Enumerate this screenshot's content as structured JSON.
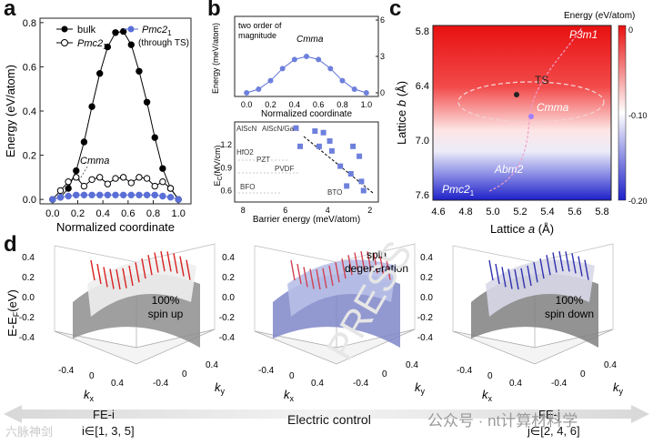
{
  "panel_labels": {
    "a": "a",
    "b": "b",
    "c": "c",
    "d": "d"
  },
  "chart_data": [
    {
      "id": "a",
      "type": "line",
      "ylabel": "Energy (eV/atom)",
      "xlabel": "Normalized coordinate",
      "xlim": [
        -0.1,
        1.1
      ],
      "ylim": [
        -0.02,
        0.82
      ],
      "xticks": [
        "0.0",
        "0.2",
        "0.4",
        "0.6",
        "0.8",
        "1.0"
      ],
      "yticks": [
        "0.0",
        "0.2",
        "0.4",
        "0.6",
        "0.8"
      ],
      "legend": {
        "bulk": "bulk",
        "pmc2": "Pmc2",
        "pmc2_sub": "1",
        "pmc2ts": "Pmc2",
        "pmc2ts_sub": "1",
        "ts_note": "(through TS)"
      },
      "annotation": "Cmma",
      "x": [
        0.0,
        0.0625,
        0.125,
        0.1875,
        0.25,
        0.3125,
        0.375,
        0.4375,
        0.5,
        0.5625,
        0.625,
        0.6875,
        0.75,
        0.8125,
        0.875,
        0.9375,
        1.0
      ],
      "series": [
        {
          "name": "bulk",
          "values": [
            0.0,
            0.01,
            0.05,
            0.13,
            0.26,
            0.42,
            0.57,
            0.69,
            0.755,
            0.76,
            0.7,
            0.58,
            0.44,
            0.28,
            0.14,
            0.05,
            0.0
          ]
        },
        {
          "name": "Pmc2_1",
          "values": [
            0.0,
            0.04,
            0.08,
            0.1,
            0.06,
            0.09,
            0.1,
            0.07,
            0.095,
            0.1,
            0.075,
            0.1,
            0.095,
            0.06,
            0.08,
            0.05,
            0.0
          ]
        },
        {
          "name": "Pmc2_1 (through TS)",
          "values": [
            0.0,
            0.01,
            0.015,
            0.02,
            0.02,
            0.02,
            0.02,
            0.02,
            0.02,
            0.02,
            0.02,
            0.02,
            0.02,
            0.02,
            0.015,
            0.01,
            0.0
          ]
        }
      ]
    },
    {
      "id": "b-top",
      "type": "line",
      "ylabel": "Energy (meV/atom)",
      "xlabel": "Normalized coordinate",
      "xticks": [
        "0.0",
        "0.2",
        "0.4",
        "0.6",
        "0.8",
        "1.0"
      ],
      "yticks": [
        "0",
        "3",
        "6"
      ],
      "annotation": "two order of magnitude",
      "label": "Cmma",
      "x": [
        0.0,
        0.1,
        0.2,
        0.3,
        0.4,
        0.5,
        0.6,
        0.7,
        0.8,
        0.9,
        1.0
      ],
      "values": [
        0.0,
        0.3,
        1.0,
        2.0,
        2.75,
        3.0,
        2.75,
        2.0,
        1.0,
        0.3,
        0.0
      ]
    },
    {
      "id": "b-bottom",
      "type": "scatter",
      "ylabel": "E",
      "ylabel_sub": "C",
      "ylabel_unit": "(MV/cm)",
      "xlabel": "Barrier energy (meV/atom)",
      "xticks": [
        "8",
        "6",
        "4",
        "2"
      ],
      "yticks": [
        "0.6",
        "0.9",
        "1.2"
      ],
      "material_labels": [
        "AlScN",
        "AlScN/GaN",
        "HfO2",
        "PZT",
        "PVDF",
        "BFO",
        "BTO"
      ],
      "points": [
        [
          5.5,
          1.42
        ],
        [
          4.6,
          1.38
        ],
        [
          4.2,
          1.36
        ],
        [
          3.9,
          1.25
        ],
        [
          5.3,
          1.18
        ],
        [
          4.4,
          1.18
        ],
        [
          3.8,
          1.12
        ],
        [
          2.8,
          1.18
        ],
        [
          2.5,
          1.05
        ],
        [
          3.4,
          0.92
        ],
        [
          2.9,
          0.82
        ],
        [
          2.4,
          0.72
        ],
        [
          3.1,
          0.66
        ],
        [
          2.3,
          0.6
        ]
      ]
    },
    {
      "id": "c",
      "type": "heatmap",
      "title": "Energy (eV/atom)",
      "xlabel": "Lattice a (Å)",
      "ylabel": "Lattice b (Å)",
      "xticks": [
        "4.6",
        "4.8",
        "5.0",
        "5.2",
        "5.4",
        "5.6",
        "5.8"
      ],
      "yticks": [
        "5.8",
        "6.4",
        "7.0",
        "7.6"
      ],
      "colorbar_ticks": [
        "0",
        "-0.10",
        "-0.20"
      ],
      "labels": {
        "ts": "TS",
        "cmma": "Cmma",
        "p3m1": "P3m1",
        "abm2": "Abm2",
        "pmc21": "Pmc2"
      }
    }
  ],
  "panel_d": {
    "axis_label": "E-E",
    "axis_sub": "F",
    "axis_unit": "(eV)",
    "zticks": [
      "0.4",
      "0.2",
      "0.0",
      "-0.2",
      "-0.4"
    ],
    "kx": "k",
    "kx_sub": "x",
    "ky": "k",
    "ky_sub": "y",
    "k_ticks": [
      "-0.4",
      "0",
      "0.4"
    ],
    "annotations": [
      "100% spin up",
      "spin degeneration",
      "100% spin down"
    ]
  },
  "bottom": {
    "left_title": "FE-i",
    "left_sub": "i∈[1, 3, 5]",
    "center": "Electric control",
    "right_title": "FE-j",
    "right_sub": "j∈[2, 4, 6]"
  },
  "watermarks": {
    "right": "公众号 · nt计算材料学",
    "left": "六脉神剑",
    "diag": "PRESS"
  }
}
